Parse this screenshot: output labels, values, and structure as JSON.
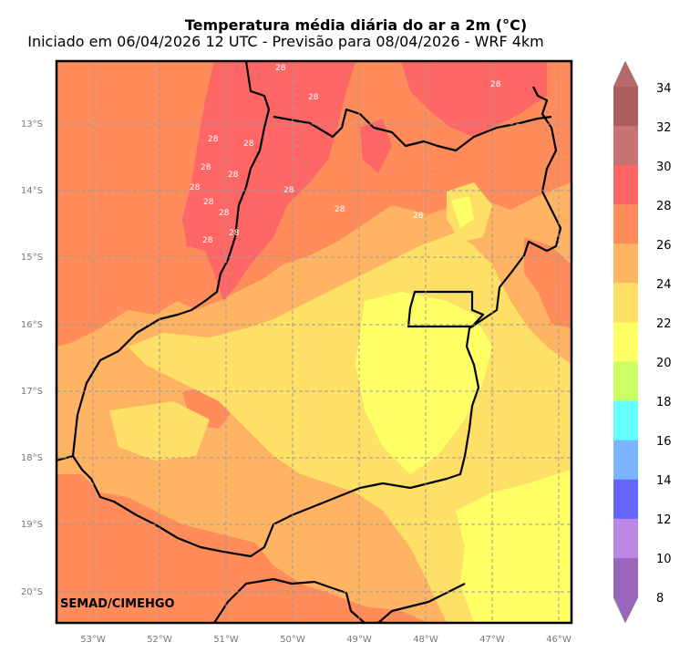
{
  "title": "Temperatura média diária do ar a 2m (°C)",
  "subtitle": "Iniciado em 06/04/2026 12 UTC - Previsão para 08/04/2026 - WRF 4km",
  "credit": "SEMAD/CIMEHGO",
  "lon_ticks": [
    "53°W",
    "52°W",
    "51°W",
    "50°W",
    "49°W",
    "48°W",
    "47°W",
    "46°W"
  ],
  "lat_ticks": [
    "13°S",
    "14°S",
    "15°S",
    "16°S",
    "17°S",
    "18°S",
    "19°S",
    "20°S"
  ],
  "colorbar": {
    "labels": [
      "34",
      "32",
      "30",
      "28",
      "26",
      "24",
      "22",
      "20",
      "18",
      "16",
      "14",
      "12",
      "10",
      "8"
    ],
    "colors": [
      "#ad5d5d",
      "#c87474",
      "#ff6666",
      "#ff8c5a",
      "#ffb463",
      "#ffe066",
      "#ffff66",
      "#ccff66",
      "#66ffff",
      "#7ab4ff",
      "#6666ff",
      "#bb88e6",
      "#9966bb"
    ],
    "top_triangle_color": "#b86a6a",
    "bottom_triangle_color": "#9966bb"
  },
  "contour_labels": [
    "28",
    "28",
    "28",
    "28",
    "28",
    "28",
    "28",
    "28",
    "28",
    "28",
    "28",
    "28",
    "28",
    "28",
    "28",
    "28"
  ],
  "chart_data": {
    "type": "heatmap",
    "variable": "Temperatura média diária do ar a 2m",
    "units": "°C",
    "lon_range": [
      -53.55,
      -46.0
    ],
    "lat_range": [
      -20.45,
      -12.1
    ],
    "levels": [
      8,
      10,
      12,
      14,
      16,
      18,
      20,
      22,
      24,
      26,
      28,
      30,
      32,
      34
    ],
    "regions": [
      {
        "area": "northwest",
        "range_c": [
          28,
          30
        ]
      },
      {
        "area": "west-central",
        "range_c": [
          26,
          28
        ]
      },
      {
        "area": "center",
        "range_c": [
          22,
          24
        ]
      },
      {
        "area": "southeast",
        "range_c": [
          20,
          22
        ]
      }
    ]
  }
}
